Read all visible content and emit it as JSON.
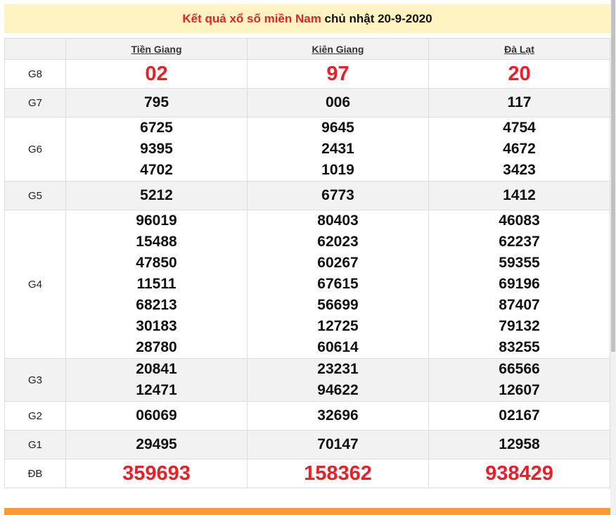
{
  "title": {
    "red": "Kết quả xổ số miền Nam",
    "rest": " chủ nhật 20-9-2020"
  },
  "provinces": [
    "Tiền Giang",
    "Kiên Giang",
    "Đà Lạt"
  ],
  "rows": [
    {
      "label": "G8",
      "style": "big",
      "values": [
        [
          "02"
        ],
        [
          "97"
        ],
        [
          "20"
        ]
      ]
    },
    {
      "label": "G7",
      "style": "n",
      "values": [
        [
          "795"
        ],
        [
          "006"
        ],
        [
          "117"
        ]
      ]
    },
    {
      "label": "G6",
      "style": "n",
      "values": [
        [
          "6725",
          "9395",
          "4702"
        ],
        [
          "9645",
          "2431",
          "1019"
        ],
        [
          "4754",
          "4672",
          "3423"
        ]
      ]
    },
    {
      "label": "G5",
      "style": "n",
      "values": [
        [
          "5212"
        ],
        [
          "6773"
        ],
        [
          "1412"
        ]
      ]
    },
    {
      "label": "G4",
      "style": "n",
      "values": [
        [
          "96019",
          "15488",
          "47850",
          "11511",
          "68213",
          "30183",
          "28780"
        ],
        [
          "80403",
          "62023",
          "60267",
          "67615",
          "56699",
          "12725",
          "60614"
        ],
        [
          "46083",
          "62237",
          "59355",
          "69196",
          "87407",
          "79132",
          "83255"
        ]
      ]
    },
    {
      "label": "G3",
      "style": "n",
      "values": [
        [
          "20841",
          "12471"
        ],
        [
          "23231",
          "94622"
        ],
        [
          "66566",
          "12607"
        ]
      ]
    },
    {
      "label": "G2",
      "style": "n",
      "values": [
        [
          "06069"
        ],
        [
          "32696"
        ],
        [
          "02167"
        ]
      ]
    },
    {
      "label": "G1",
      "style": "n",
      "values": [
        [
          "29495"
        ],
        [
          "70147"
        ],
        [
          "12958"
        ]
      ]
    },
    {
      "label": "ĐB",
      "style": "big",
      "values": [
        [
          "359693"
        ],
        [
          "158362"
        ],
        [
          "938429"
        ]
      ]
    }
  ],
  "colors": {
    "accent": "#e8202a",
    "title_bg": "#fff3c2",
    "footer": "#f99b33"
  }
}
